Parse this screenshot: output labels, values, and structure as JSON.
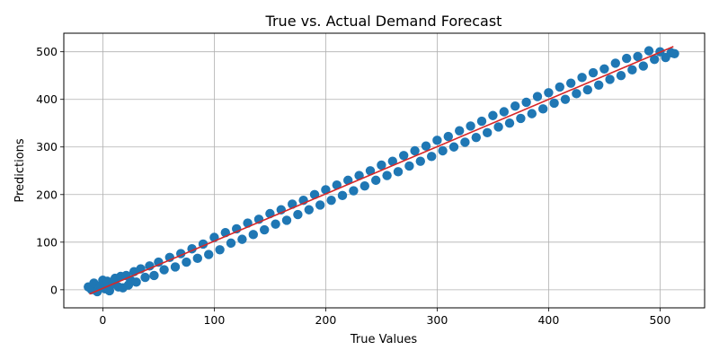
{
  "chart_data": {
    "type": "scatter",
    "title": "True vs. Actual Demand Forecast",
    "xlabel": "True Values",
    "ylabel": "Predictions",
    "xlim": [
      -35,
      540
    ],
    "ylim": [
      -38,
      539
    ],
    "xticks": [
      0,
      100,
      200,
      300,
      400,
      500
    ],
    "yticks": [
      0,
      100,
      200,
      300,
      400,
      500
    ],
    "grid": true,
    "series": [
      {
        "kind": "scatter",
        "color": "#1f77b4",
        "x": [
          -13,
          -10,
          -8,
          -5,
          -2,
          0,
          2,
          4,
          6,
          9,
          11,
          14,
          16,
          18,
          21,
          23,
          25,
          28,
          30,
          34,
          38,
          42,
          46,
          50,
          55,
          60,
          65,
          70,
          75,
          80,
          85,
          90,
          95,
          100,
          105,
          110,
          115,
          120,
          125,
          130,
          135,
          140,
          145,
          150,
          155,
          160,
          165,
          170,
          175,
          180,
          185,
          190,
          195,
          200,
          205,
          210,
          215,
          220,
          225,
          230,
          235,
          240,
          245,
          250,
          255,
          260,
          265,
          270,
          275,
          280,
          285,
          290,
          295,
          300,
          305,
          310,
          315,
          320,
          325,
          330,
          335,
          340,
          345,
          350,
          355,
          360,
          365,
          370,
          375,
          380,
          385,
          390,
          395,
          400,
          405,
          410,
          415,
          420,
          425,
          430,
          435,
          440,
          445,
          450,
          455,
          460,
          465,
          470,
          475,
          480,
          485,
          490,
          495,
          500,
          505,
          510,
          513
        ],
        "y": [
          6,
          0,
          14,
          -4,
          8,
          20,
          2,
          18,
          -2,
          12,
          24,
          6,
          28,
          4,
          30,
          10,
          20,
          38,
          16,
          44,
          26,
          50,
          30,
          58,
          42,
          68,
          48,
          76,
          58,
          86,
          66,
          96,
          74,
          110,
          84,
          120,
          98,
          128,
          106,
          140,
          116,
          148,
          126,
          160,
          138,
          168,
          146,
          180,
          158,
          188,
          168,
          200,
          178,
          210,
          188,
          220,
          198,
          230,
          208,
          240,
          218,
          250,
          230,
          262,
          240,
          270,
          248,
          282,
          260,
          292,
          270,
          302,
          280,
          314,
          292,
          322,
          300,
          334,
          310,
          344,
          320,
          354,
          330,
          366,
          342,
          374,
          350,
          386,
          360,
          394,
          370,
          406,
          380,
          414,
          392,
          426,
          400,
          434,
          412,
          446,
          420,
          456,
          430,
          464,
          442,
          476,
          450,
          486,
          462,
          490,
          470,
          502,
          484,
          500,
          488,
          498,
          496
        ]
      },
      {
        "kind": "line",
        "color": "#d62728",
        "x": [
          -12,
          512
        ],
        "y": [
          -9,
          511
        ]
      }
    ]
  }
}
